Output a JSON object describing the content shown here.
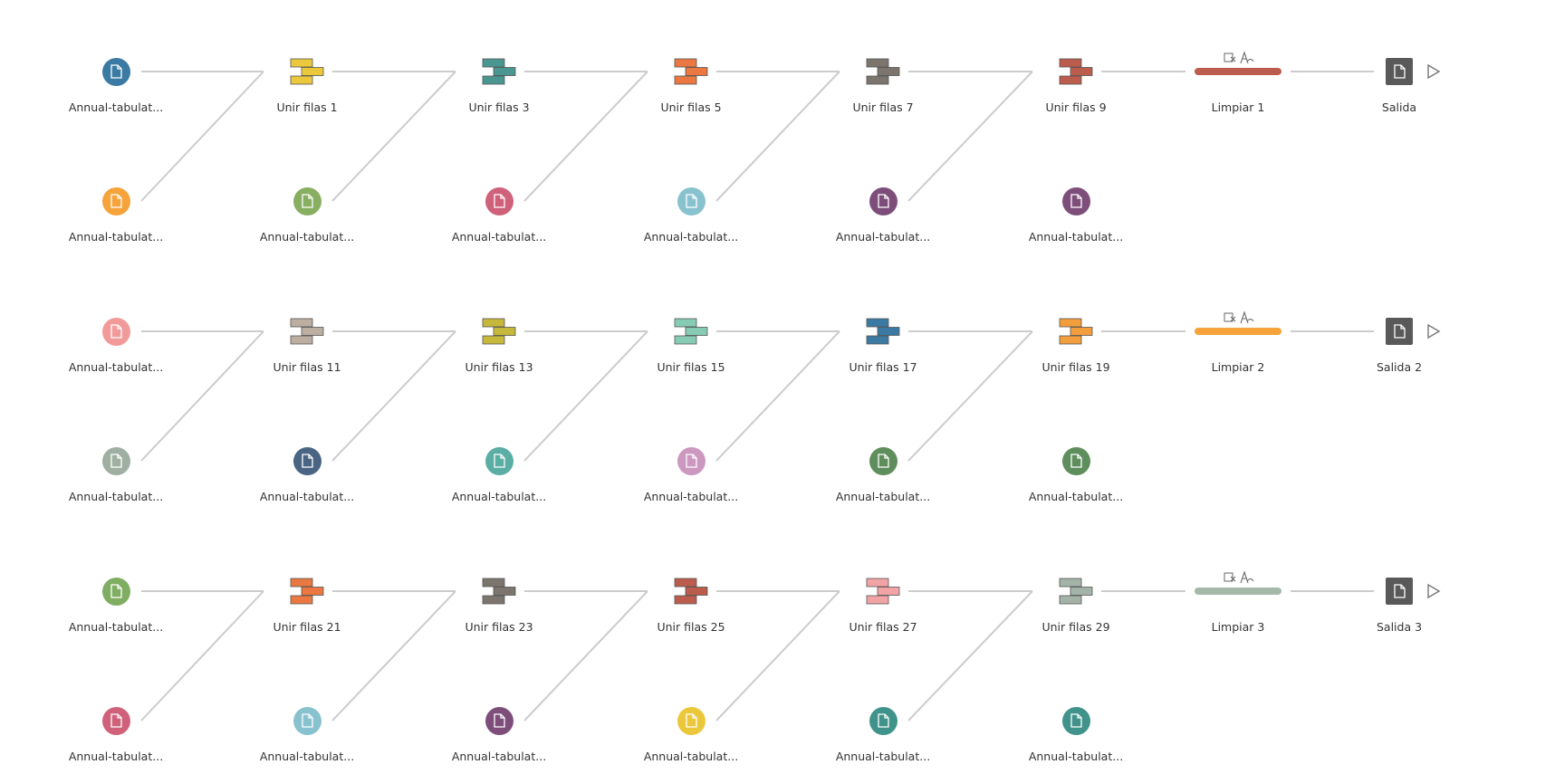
{
  "flows": [
    {
      "inputs_top": [
        {
          "label": "Annual-tabulat...",
          "color": "#3a7aa3"
        },
        {
          "label": "Annual-tabulat...",
          "color": "#f5a33a"
        },
        {
          "label": "Annual-tabulat...",
          "color": "#88ae62"
        },
        {
          "label": "Annual-tabulat...",
          "color": "#d0617b"
        },
        {
          "label": "Annual-tabulat...",
          "color": "#89c2cf"
        },
        {
          "label": "Annual-tabulat...",
          "color": "#7e4e7b"
        }
      ],
      "unions": [
        {
          "label": "Unir filas 1",
          "color": "#ebc83b"
        },
        {
          "label": "Unir filas 3",
          "color": "#4a9792"
        },
        {
          "label": "Unir filas 5",
          "color": "#ea7840"
        },
        {
          "label": "Unir filas 7",
          "color": "#7c756e"
        },
        {
          "label": "Unir filas 9",
          "color": "#bb5c4c"
        }
      ],
      "clean": {
        "label": "Limpiar 1",
        "color": "#bb5c4c"
      },
      "output": {
        "label": "Salida"
      }
    },
    {
      "inputs_top": [
        {
          "label": "Annual-tabulat...",
          "color": "#f29a9a"
        },
        {
          "label": "Annual-tabulat...",
          "color": "#9fb0a3"
        },
        {
          "label": "Annual-tabulat...",
          "color": "#4a6584"
        },
        {
          "label": "Annual-tabulat...",
          "color": "#5aaea4"
        },
        {
          "label": "Annual-tabulat...",
          "color": "#cc98c0"
        },
        {
          "label": "Annual-tabulat...",
          "color": "#5f8e5d"
        }
      ],
      "unions": [
        {
          "label": "Unir filas 11",
          "color": "#bcaea0"
        },
        {
          "label": "Unir filas 13",
          "color": "#c6b83a"
        },
        {
          "label": "Unir filas 15",
          "color": "#86cbb4"
        },
        {
          "label": "Unir filas 17",
          "color": "#3a7aa3"
        },
        {
          "label": "Unir filas 19",
          "color": "#f39e3c"
        }
      ],
      "clean": {
        "label": "Limpiar 2",
        "color": "#f5a33a"
      },
      "output": {
        "label": "Salida 2"
      }
    },
    {
      "inputs_top": [
        {
          "label": "Annual-tabulat...",
          "color": "#7fae63"
        },
        {
          "label": "Annual-tabulat...",
          "color": "#d0617b"
        },
        {
          "label": "Annual-tabulat...",
          "color": "#89c2cf"
        },
        {
          "label": "Annual-tabulat...",
          "color": "#7e4e7b"
        },
        {
          "label": "Annual-tabulat...",
          "color": "#ebc83b"
        },
        {
          "label": "Annual-tabulat...",
          "color": "#40938a"
        }
      ],
      "unions": [
        {
          "label": "Unir filas 21",
          "color": "#ea7840"
        },
        {
          "label": "Unir filas 23",
          "color": "#7c756e"
        },
        {
          "label": "Unir filas 25",
          "color": "#bb5c4c"
        },
        {
          "label": "Unir filas 27",
          "color": "#f2a3a6"
        },
        {
          "label": "Unir filas 29",
          "color": "#a4b3a8"
        }
      ],
      "clean": {
        "label": "Limpiar 3",
        "color": "#a4b9a9"
      },
      "output": {
        "label": "Salida 3"
      }
    }
  ],
  "icons": {
    "input": "file-input-icon",
    "union": "union-icon",
    "clean": "clean-step-icon",
    "output": "output-file-icon",
    "run": "run-flow-icon"
  },
  "colors": {
    "link": "#cccccc",
    "output": "#595959",
    "label": "#333333"
  }
}
